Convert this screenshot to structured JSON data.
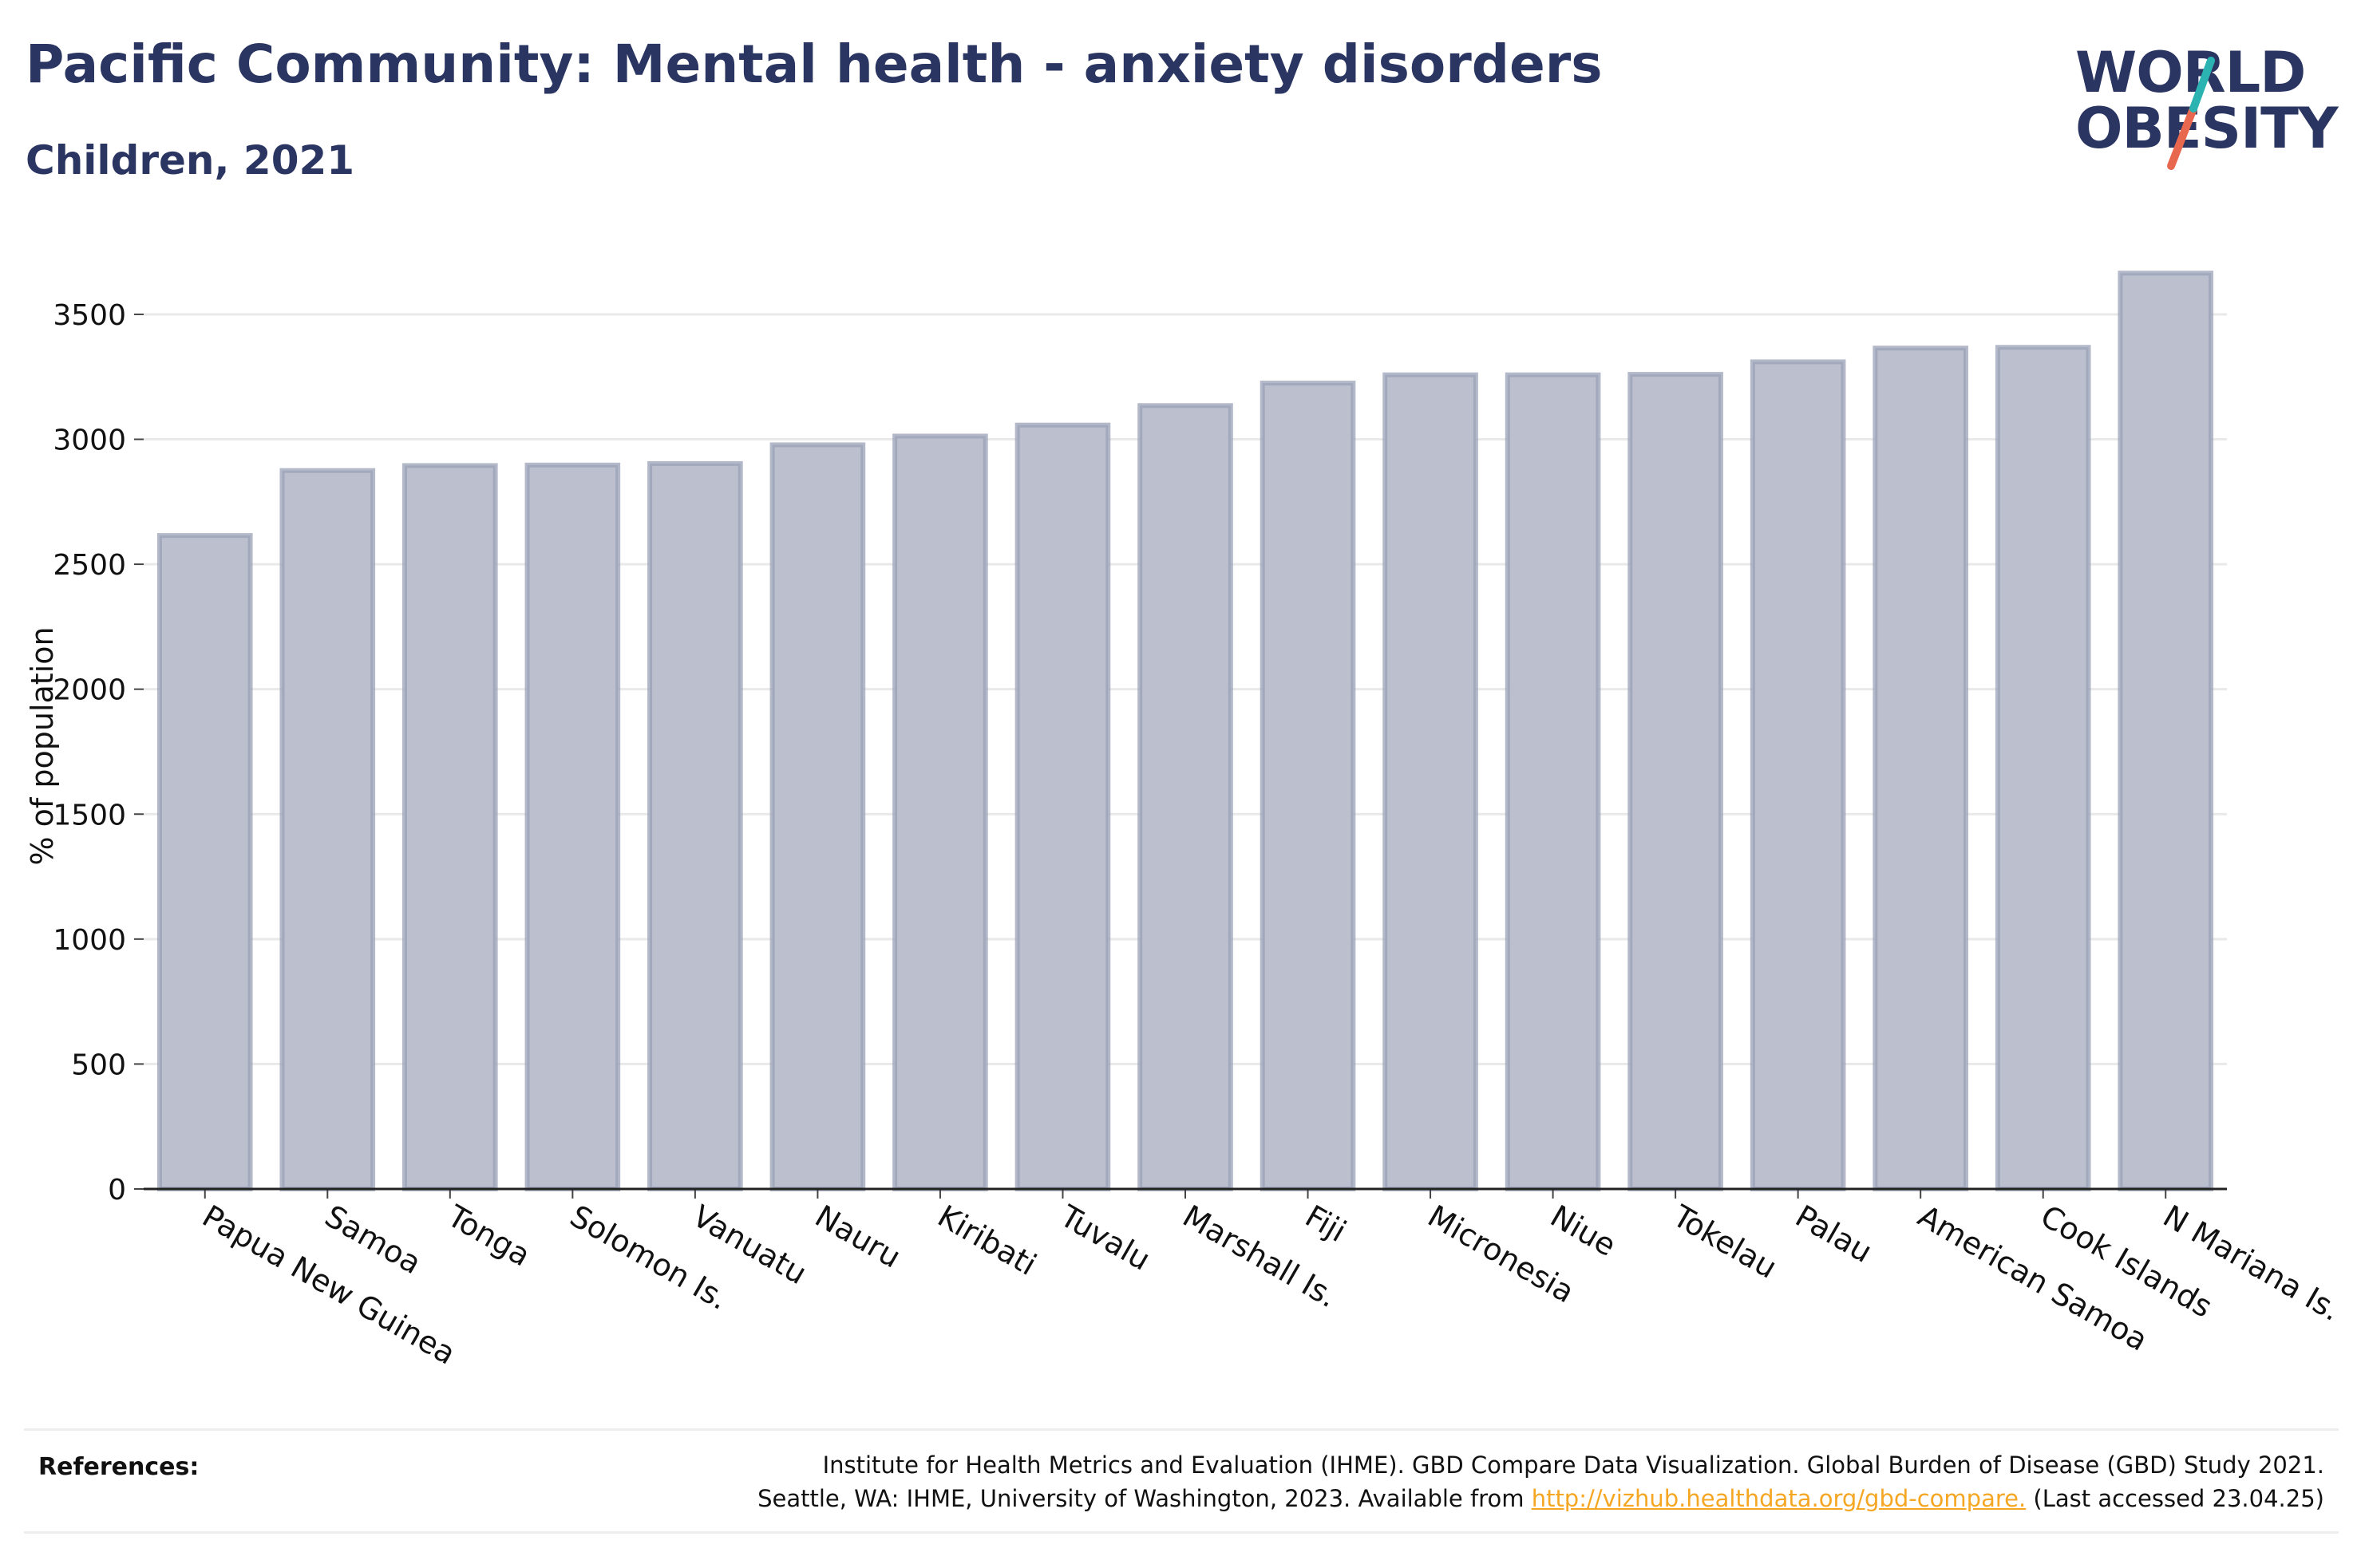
{
  "header": {
    "title": "Pacific Community: Mental health - anxiety disorders",
    "subtitle": "Children, 2021"
  },
  "logo": {
    "line1": "WORLD",
    "line2": "OBESITY",
    "colors": {
      "text": "#2a3561",
      "slash_teal": "#2bb3b1",
      "slash_coral": "#e8674f"
    }
  },
  "chart_data": {
    "type": "bar",
    "categories": [
      "Papua New Guinea",
      "Samoa",
      "Tonga",
      "Solomon Is.",
      "Vanuatu",
      "Nauru",
      "Kiribati",
      "Tuvalu",
      "Marshall Is.",
      "Fiji",
      "Micronesia",
      "Niue",
      "Tokelau",
      "Palau",
      "American Samoa",
      "Cook Islands",
      "N Mariana Is."
    ],
    "values": [
      2615,
      2875,
      2895,
      2897,
      2903,
      2978,
      3013,
      3057,
      3135,
      3225,
      3258,
      3258,
      3260,
      3310,
      3365,
      3368,
      3665
    ],
    "ylabel": "% of population",
    "xlabel": "",
    "ylim": [
      0,
      3800
    ],
    "yticks": [
      0,
      500,
      1000,
      1500,
      2000,
      2500,
      3000,
      3500
    ],
    "grid": true,
    "colors": {
      "bar_fill": "#bcc0ce",
      "bar_stroke": "#9aa1b7",
      "grid": "#e9e9e9"
    }
  },
  "references": {
    "label": "References:",
    "line1": "Institute for Health Metrics and Evaluation (IHME). GBD Compare Data Visualization. Global Burden of Disease (GBD) Study 2021.",
    "line2_prefix": "Seattle, WA: IHME, University of Washington, 2023. Available from ",
    "link_text": "http://vizhub.healthdata.org/gbd-compare.",
    "line2_suffix": " (Last accessed 23.04.25)"
  }
}
